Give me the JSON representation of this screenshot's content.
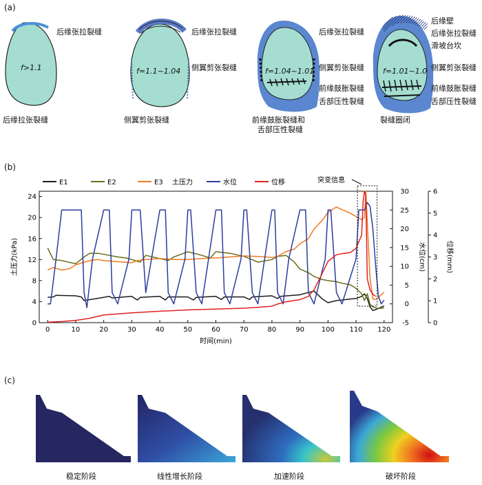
{
  "panel_a": {
    "tag": "(a)",
    "stages": [
      {
        "f": "f>1.1",
        "side": [
          "后缘张拉裂缝"
        ],
        "bottom": "后缘拉张裂缝"
      },
      {
        "f": "f=1.1~1.04",
        "side": [
          "后缘张拉裂缝",
          "侧翼剪张裂缝"
        ],
        "bottom": "侧翼剪张裂缝"
      },
      {
        "f": "f=1.04~1.01",
        "side": [
          "后缘张拉裂缝",
          "侧翼剪张裂缝",
          "前缘鼓胀裂缝",
          "舌部压性裂缝"
        ],
        "bottom": "前缘鼓胀裂缝和",
        "bottom2": "舌部压性裂缝"
      },
      {
        "f": "f=1.01~1.0",
        "side": [
          "后缘壁",
          "后缘张拉裂缝",
          "滑坡台坎",
          "侧翼剪张裂缝",
          "前缘鼓胀裂缝",
          "舌部压性裂缝"
        ],
        "bottom": "裂缝圈闭"
      }
    ]
  },
  "panel_b": {
    "tag": "(b)",
    "annotation": "突变信息"
  },
  "chart_data": {
    "type": "line",
    "xlabel": "时间(min)",
    "ylabel_left": "土压力(kPa)",
    "ylabel_right1": "水位(cm)",
    "ylabel_right2": "位移(mm)",
    "x_ticks": [
      0,
      10,
      20,
      30,
      40,
      50,
      60,
      70,
      80,
      90,
      100,
      110,
      120
    ],
    "y_left_ticks": [
      0,
      4,
      8,
      12,
      16,
      20,
      24
    ],
    "y_right1_ticks": [
      -5,
      0,
      5,
      10,
      15,
      20,
      25,
      30
    ],
    "y_right2_ticks": [
      0,
      1,
      2,
      3,
      4,
      5,
      6
    ],
    "xlim": [
      -3,
      123
    ],
    "ylim_left": [
      0,
      25
    ],
    "ylim_right1": [
      -5,
      30
    ],
    "ylim_right2": [
      0,
      6
    ],
    "series": [
      {
        "name": "E1",
        "color": "#1a1a1a",
        "axis": "left",
        "x": [
          0,
          2,
          3,
          10,
          12,
          13,
          20,
          22,
          23,
          30,
          32,
          33,
          40,
          42,
          43,
          50,
          52,
          53,
          60,
          62,
          63,
          70,
          72,
          73,
          80,
          82,
          83,
          90,
          92,
          95,
          98,
          100,
          103,
          105,
          108,
          110,
          112,
          113,
          114,
          115,
          116,
          117,
          118,
          120
        ],
        "y": [
          4.8,
          4.9,
          5.2,
          5.1,
          4.9,
          4.2,
          4.8,
          5.0,
          4.7,
          5.0,
          4.3,
          4.8,
          5.0,
          4.3,
          4.9,
          4.9,
          4.3,
          4.8,
          5.0,
          4.4,
          4.9,
          4.9,
          4.4,
          4.9,
          5.1,
          4.6,
          5.0,
          5.3,
          5.6,
          6.0,
          4.5,
          3.8,
          4.2,
          4.3,
          4.5,
          4.6,
          5.0,
          5.5,
          4.6,
          3.0,
          2.3,
          2.5,
          2.7,
          3.2
        ]
      },
      {
        "name": "E2",
        "color": "#6b6b1a",
        "axis": "left",
        "x": [
          0,
          2,
          5,
          10,
          13,
          15,
          18,
          20,
          25,
          28,
          30,
          33,
          35,
          40,
          43,
          45,
          50,
          55,
          58,
          60,
          65,
          70,
          72,
          75,
          80,
          82,
          85,
          88,
          90,
          93,
          95,
          98,
          100,
          103,
          105,
          108,
          110,
          112,
          113,
          114,
          115,
          116,
          117,
          118,
          120
        ],
        "y": [
          14.2,
          12.0,
          11.8,
          11.2,
          12.5,
          13.2,
          13.2,
          13.0,
          12.5,
          12.3,
          12.0,
          11.5,
          12.8,
          12.2,
          11.8,
          12.5,
          13.5,
          12.8,
          12.3,
          13.5,
          13.2,
          12.6,
          12.2,
          11.5,
          12.0,
          12.6,
          12.8,
          11.5,
          10.2,
          9.5,
          8.8,
          8.2,
          8.0,
          7.8,
          7.5,
          7.2,
          6.5,
          5.5,
          4.2,
          5.5,
          3.5,
          3.0,
          2.8,
          2.7,
          2.8
        ]
      },
      {
        "name": "E3",
        "color": "#f07820",
        "axis": "left",
        "x": [
          0,
          2,
          5,
          8,
          10,
          13,
          15,
          18,
          20,
          25,
          30,
          32,
          35,
          40,
          45,
          50,
          55,
          60,
          65,
          70,
          75,
          80,
          82,
          85,
          88,
          90,
          93,
          95,
          98,
          100,
          103,
          105,
          108,
          110,
          112,
          113,
          113.5,
          114,
          115,
          116,
          117,
          118,
          120
        ],
        "y": [
          10.0,
          10.5,
          10.0,
          10.3,
          11.0,
          11.5,
          11.8,
          12.0,
          11.8,
          11.6,
          11.4,
          11.8,
          12.0,
          12.2,
          12.0,
          12.0,
          12.2,
          12.3,
          12.5,
          12.7,
          12.6,
          12.4,
          12.6,
          13.5,
          14.0,
          15.0,
          16.0,
          17.8,
          19.5,
          21.0,
          22.0,
          21.5,
          20.8,
          20.2,
          19.6,
          20.0,
          25.0,
          19.0,
          8.5,
          4.5,
          4.4,
          4.8,
          5.8
        ]
      },
      {
        "name": "土压力",
        "color": "#1a1a1a",
        "axis": "none",
        "x": [],
        "y": []
      },
      {
        "name": "水位",
        "color": "#2a3c9c",
        "axis": "right1",
        "x": [
          0,
          1,
          3,
          5,
          10,
          12,
          13,
          14,
          16,
          20,
          22,
          23,
          25,
          29,
          30,
          31,
          33,
          35,
          40,
          42,
          43,
          45,
          49,
          50,
          51,
          53,
          55,
          60,
          62,
          63,
          65,
          69,
          70,
          71,
          73,
          75,
          80,
          81,
          82,
          84,
          86,
          90,
          92,
          93,
          95,
          99,
          100,
          101,
          103,
          105,
          110,
          111,
          112,
          113,
          114,
          115,
          116,
          117,
          118,
          119,
          120
        ],
        "y": [
          0,
          0,
          12,
          25,
          25,
          25,
          3,
          -1,
          12,
          25,
          25,
          3,
          0,
          12,
          25,
          25,
          25,
          3,
          25,
          25,
          3,
          0,
          12,
          25,
          25,
          3,
          0,
          25,
          25,
          3,
          0,
          12,
          25,
          25,
          3,
          0,
          25,
          25,
          3,
          0,
          12,
          25,
          25,
          3,
          0,
          12,
          25,
          25,
          3,
          0,
          12,
          25,
          25,
          25,
          27,
          26,
          20,
          10,
          2,
          0,
          1
        ]
      },
      {
        "name": "位移",
        "color": "#e02020",
        "axis": "right2",
        "x": [
          0,
          5,
          10,
          15,
          20,
          30,
          40,
          50,
          60,
          70,
          75,
          80,
          82,
          85,
          90,
          93,
          95,
          97,
          100,
          103,
          105,
          108,
          110,
          112,
          112.5,
          113,
          113.5,
          114,
          115,
          116,
          117
        ],
        "y": [
          0.02,
          0.05,
          0.1,
          0.2,
          0.35,
          0.45,
          0.52,
          0.58,
          0.62,
          0.66,
          0.7,
          0.75,
          0.85,
          0.95,
          1.05,
          1.2,
          1.5,
          2.0,
          2.8,
          3.1,
          3.15,
          3.2,
          3.4,
          4.0,
          5.5,
          6.0,
          5.8,
          2.0,
          1.5,
          1.3,
          1.2
        ]
      }
    ]
  },
  "panel_c": {
    "tag": "(c)",
    "stages": [
      "稳定阶段",
      "线性增长阶段",
      "加速阶段",
      "破坏阶段"
    ]
  }
}
